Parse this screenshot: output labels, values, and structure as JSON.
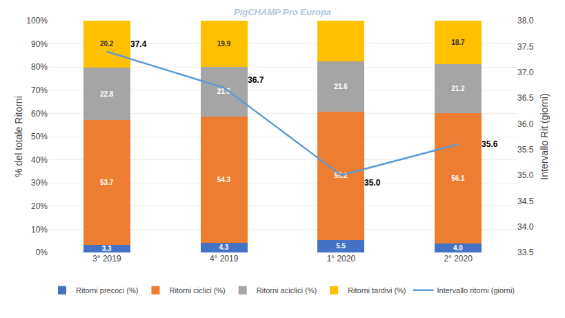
{
  "chart_data": {
    "type": "bar",
    "stacked": true,
    "categories": [
      "3° 2019",
      "4° 2019",
      "1° 2020",
      "2° 2020"
    ],
    "series": [
      {
        "name": "Ritorni precoci (%)",
        "color": "#4472C4",
        "values": [
          3.3,
          4.3,
          5.5,
          4.0
        ],
        "value_labels": [
          "3.3",
          "4.3",
          "5.5",
          "4.0"
        ]
      },
      {
        "name": "Ritorni ciclici (%)",
        "color": "#ED7D31",
        "values": [
          53.7,
          54.3,
          55.2,
          56.1
        ]
      },
      {
        "name": "Ritorni aciclici (%)",
        "color": "#A5A5A5",
        "values": [
          22.8,
          21.5,
          21.6,
          21.2
        ]
      },
      {
        "name": "Ritorni tardivi (%)",
        "color": "#FFC000",
        "values": [
          20.2,
          19.9,
          17.7,
          18.7
        ]
      },
      {
        "name": "Intervallo ritorni (giorni)",
        "type": "line",
        "axis": "y2",
        "color": "#5B9BD5",
        "values": [
          37.4,
          36.7,
          35.0,
          35.6
        ],
        "value_labels": [
          "37.4",
          "36.7",
          "35.0",
          "35.6"
        ]
      }
    ],
    "ylabel": "% del totale Ritorni",
    "y2label": "Intervallo Rit (giorni)",
    "ylim": [
      0,
      100
    ],
    "yticks": [
      {
        "value": 0,
        "label": "0%"
      },
      {
        "value": 10,
        "label": "10%"
      },
      {
        "value": 20,
        "label": "20%"
      },
      {
        "value": 30,
        "label": "30%"
      },
      {
        "value": 40,
        "label": "40%"
      },
      {
        "value": 50,
        "label": "50%"
      },
      {
        "value": 60,
        "label": "60%"
      },
      {
        "value": 70,
        "label": "70%"
      },
      {
        "value": 80,
        "label": "80%"
      },
      {
        "value": 90,
        "label": "90%"
      },
      {
        "value": 100,
        "label": "100%"
      }
    ],
    "y2lim": [
      33.5,
      38.0
    ],
    "y2ticks": [
      33.5,
      {
        "value": 34,
        "label": "34.0"
      },
      34.5,
      {
        "value": 35,
        "label": "35.0"
      },
      35.5,
      {
        "value": 36,
        "label": "36.0"
      },
      36.5,
      {
        "value": 37,
        "label": "37.0"
      },
      37.5,
      {
        "value": 38,
        "label": "38.0"
      }
    ],
    "grid": true,
    "data_labels": true,
    "legend": "bottom",
    "annotations": [
      "PigCHAMP Pro Europa"
    ]
  }
}
